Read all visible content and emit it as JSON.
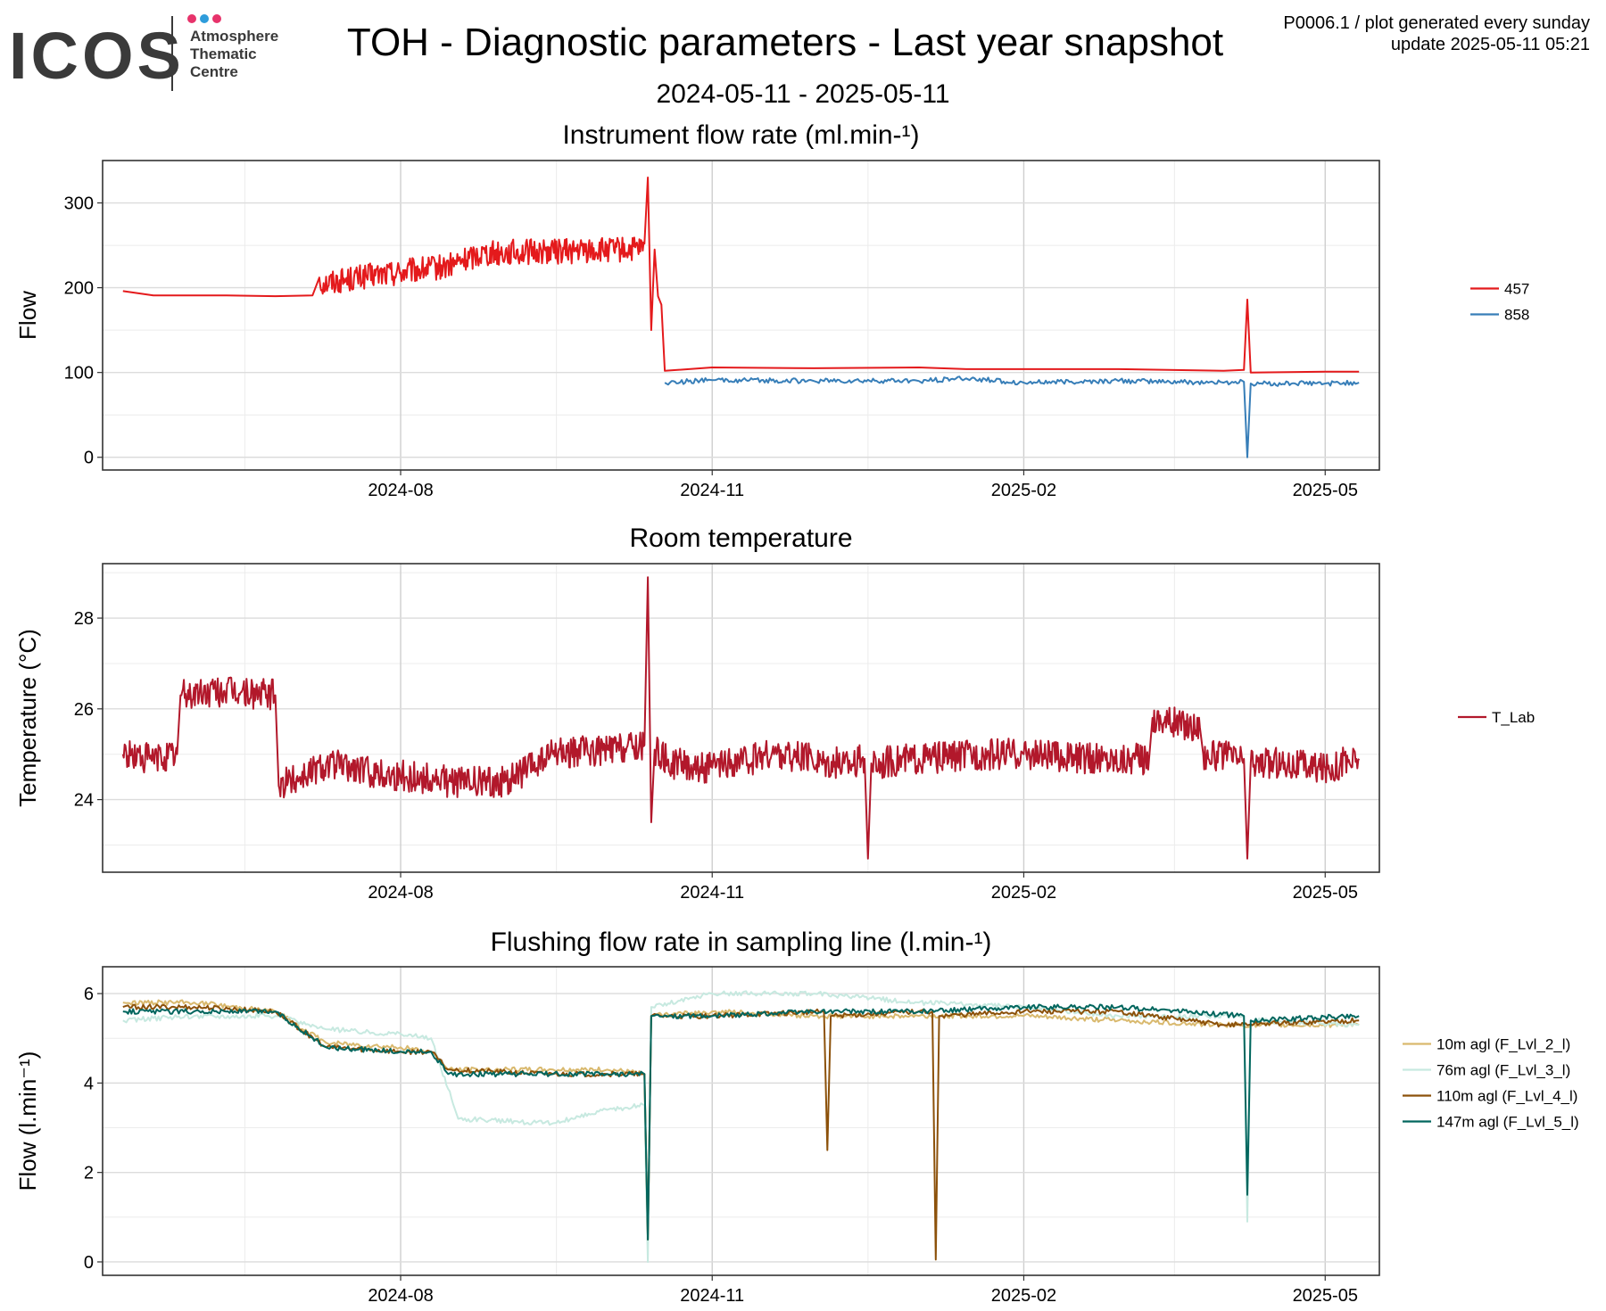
{
  "header": {
    "logo_text": "ICOS",
    "logo_sub": [
      "Atmosphere",
      "Thematic",
      "Centre"
    ],
    "title": "TOH - Diagnostic parameters - Last year snapshot",
    "date_range": "2024-05-11 - 2025-05-11",
    "meta_line1": "P0006.1 / plot generated every sunday",
    "meta_line2": "update  2025-05-11 05:21"
  },
  "colors": {
    "s457": "#E41A1C",
    "s858": "#377EB8",
    "t_lab": "#B2182B",
    "lvl2": "#D9B96E",
    "lvl3": "#C7E9E0",
    "lvl4": "#8C510A",
    "lvl5": "#01665E",
    "logo_dots": [
      "#E7336B",
      "#2E9CDB",
      "#E7336B"
    ]
  },
  "chart_data": [
    {
      "type": "line",
      "title": "Instrument flow rate (ml.min-¹)",
      "xlabel": "",
      "ylabel": "Flow",
      "xlim": [
        "2024-05-11",
        "2025-05-11"
      ],
      "ylim": [
        -15,
        350
      ],
      "x_ticks": [
        "2024-08",
        "2024-11",
        "2025-02",
        "2025-05"
      ],
      "y_ticks": [
        0,
        100,
        200,
        300
      ],
      "grid": true,
      "legend": "right",
      "series": [
        {
          "name": "457",
          "color_key": "s457",
          "x": [
            "2024-05-11",
            "2024-05-20",
            "2024-06-10",
            "2024-06-25",
            "2024-07-06",
            "2024-07-08",
            "2024-07-25",
            "2024-08-15",
            "2024-08-25",
            "2024-09-15",
            "2024-10-01",
            "2024-10-12",
            "2024-10-13",
            "2024-10-14",
            "2024-10-15",
            "2024-10-16",
            "2024-10-17",
            "2024-10-18",
            "2024-11-01",
            "2024-12-01",
            "2025-01-01",
            "2025-01-15",
            "2025-02-01",
            "2025-03-01",
            "2025-04-01",
            "2025-04-07",
            "2025-04-08",
            "2025-04-09",
            "2025-05-01",
            "2025-05-11"
          ],
          "y": [
            196,
            191,
            191,
            190,
            191,
            212,
            222,
            232,
            248,
            250,
            251,
            252,
            330,
            150,
            245,
            190,
            180,
            102,
            106,
            105,
            106,
            104,
            104,
            104,
            102,
            103,
            186,
            100,
            101,
            101
          ],
          "band": {
            "x_start": "2024-07-08",
            "x_end": "2024-10-13",
            "low_offset": -22,
            "high_offset": 8
          }
        },
        {
          "name": "858",
          "color_key": "s858",
          "x": [
            "2024-10-18",
            "2024-11-01",
            "2024-12-01",
            "2025-01-01",
            "2025-01-15",
            "2025-02-01",
            "2025-03-01",
            "2025-04-01",
            "2025-04-07",
            "2025-04-08",
            "2025-04-09",
            "2025-05-01",
            "2025-05-11"
          ],
          "y": [
            88,
            91,
            90,
            90,
            93,
            88,
            90,
            88,
            89,
            0,
            87,
            87,
            88
          ]
        }
      ]
    },
    {
      "type": "line",
      "title": "Room temperature",
      "xlabel": "",
      "ylabel": "Temperature (°C)",
      "xlim": [
        "2024-05-11",
        "2025-05-11"
      ],
      "ylim": [
        22.4,
        29.2
      ],
      "x_ticks": [
        "2024-08",
        "2024-11",
        "2025-02",
        "2025-05"
      ],
      "y_ticks": [
        24,
        26,
        28
      ],
      "grid": true,
      "legend": "right",
      "series": [
        {
          "name": "T_Lab",
          "color_key": "t_lab",
          "x": [
            "2024-05-11",
            "2024-05-20",
            "2024-05-27",
            "2024-05-28",
            "2024-06-10",
            "2024-06-25",
            "2024-06-26",
            "2024-07-10",
            "2024-07-25",
            "2024-08-15",
            "2024-09-01",
            "2024-09-15",
            "2024-10-01",
            "2024-10-12",
            "2024-10-13",
            "2024-10-14",
            "2024-10-15",
            "2024-10-20",
            "2024-11-01",
            "2024-11-20",
            "2024-12-10",
            "2024-12-16",
            "2024-12-17",
            "2024-12-18",
            "2025-01-01",
            "2025-01-20",
            "2025-02-01",
            "2025-02-20",
            "2025-03-10",
            "2025-03-11",
            "2025-03-25",
            "2025-03-26",
            "2025-04-07",
            "2025-04-08",
            "2025-04-09",
            "2025-04-20",
            "2025-05-01",
            "2025-05-11"
          ],
          "y": [
            25.0,
            24.9,
            25.0,
            26.3,
            26.4,
            26.3,
            24.3,
            24.8,
            24.6,
            24.4,
            24.4,
            25.0,
            25.1,
            25.2,
            28.9,
            23.5,
            25.1,
            24.8,
            24.7,
            25.0,
            24.8,
            24.9,
            22.7,
            24.8,
            24.9,
            25.0,
            25.0,
            24.9,
            24.9,
            25.8,
            25.6,
            25.0,
            24.9,
            22.7,
            24.8,
            24.8,
            24.7,
            24.9
          ],
          "band": {
            "x_start": "2024-05-11",
            "x_end": "2025-05-11",
            "low_offset": -0.35,
            "high_offset": 0.35
          }
        }
      ]
    },
    {
      "type": "line",
      "title": "Flushing flow rate in sampling line (l.min-¹)",
      "xlabel": "",
      "ylabel": "Flow (l.min⁻¹)",
      "xlim": [
        "2024-05-11",
        "2025-05-11"
      ],
      "ylim": [
        -0.3,
        6.6
      ],
      "x_ticks": [
        "2024-08",
        "2024-11",
        "2025-02",
        "2025-05"
      ],
      "y_ticks": [
        0,
        2,
        4,
        6
      ],
      "grid": true,
      "legend": "right",
      "series": [
        {
          "name": "10m agl (F_Lvl_2_l)",
          "color_key": "lvl2",
          "x": [
            "2024-05-11",
            "2024-06-01",
            "2024-06-25",
            "2024-07-10",
            "2024-08-01",
            "2024-08-10",
            "2024-08-15",
            "2024-09-15",
            "2024-10-01",
            "2024-10-12",
            "2024-10-13",
            "2024-10-14",
            "2024-11-01",
            "2024-12-01",
            "2025-01-01",
            "2025-02-01",
            "2025-03-01",
            "2025-04-01",
            "2025-05-11"
          ],
          "y": [
            5.8,
            5.8,
            5.6,
            4.9,
            4.8,
            4.7,
            4.3,
            4.3,
            4.3,
            4.2,
            0.5,
            5.5,
            5.6,
            5.5,
            5.5,
            5.5,
            5.4,
            5.3,
            5.3
          ]
        },
        {
          "name": "76m agl (F_Lvl_3_l)",
          "color_key": "lvl3",
          "x": [
            "2024-05-11",
            "2024-06-01",
            "2024-06-25",
            "2024-07-10",
            "2024-08-01",
            "2024-08-10",
            "2024-08-18",
            "2024-09-15",
            "2024-10-01",
            "2024-10-12",
            "2024-10-13",
            "2024-10-14",
            "2024-11-01",
            "2024-12-01",
            "2025-01-01",
            "2025-02-01",
            "2025-03-01",
            "2025-04-07",
            "2025-04-08",
            "2025-04-09",
            "2025-05-11"
          ],
          "y": [
            5.4,
            5.5,
            5.5,
            5.2,
            5.1,
            5.0,
            3.2,
            3.1,
            3.4,
            3.5,
            0.0,
            5.7,
            6.0,
            6.0,
            5.8,
            5.7,
            5.5,
            5.5,
            0.9,
            5.4,
            5.3
          ]
        },
        {
          "name": "110m agl (F_Lvl_4_l)",
          "color_key": "lvl4",
          "x": [
            "2024-05-11",
            "2024-06-01",
            "2024-06-25",
            "2024-07-10",
            "2024-08-01",
            "2024-08-10",
            "2024-08-15",
            "2024-09-15",
            "2024-10-01",
            "2024-10-12",
            "2024-10-13",
            "2024-10-14",
            "2024-11-01",
            "2024-12-04",
            "2024-12-05",
            "2024-12-06",
            "2025-01-01",
            "2025-01-05",
            "2025-01-06",
            "2025-01-07",
            "2025-02-01",
            "2025-03-01",
            "2025-04-01",
            "2025-05-11"
          ],
          "y": [
            5.7,
            5.7,
            5.6,
            4.8,
            4.7,
            4.7,
            4.3,
            4.2,
            4.2,
            4.2,
            0.5,
            5.5,
            5.5,
            5.6,
            2.5,
            5.5,
            5.6,
            5.6,
            0.05,
            5.5,
            5.6,
            5.6,
            5.3,
            5.4
          ]
        },
        {
          "name": "147m agl (F_Lvl_5_l)",
          "color_key": "lvl5",
          "x": [
            "2024-05-11",
            "2024-06-01",
            "2024-06-25",
            "2024-07-10",
            "2024-08-01",
            "2024-08-10",
            "2024-08-15",
            "2024-09-15",
            "2024-10-01",
            "2024-10-12",
            "2024-10-13",
            "2024-10-14",
            "2024-11-01",
            "2024-12-01",
            "2025-01-01",
            "2025-02-01",
            "2025-03-01",
            "2025-04-07",
            "2025-04-08",
            "2025-04-09",
            "2025-05-11"
          ],
          "y": [
            5.6,
            5.6,
            5.6,
            4.8,
            4.7,
            4.7,
            4.2,
            4.2,
            4.2,
            4.2,
            0.5,
            5.5,
            5.5,
            5.6,
            5.6,
            5.7,
            5.7,
            5.5,
            1.5,
            5.4,
            5.5
          ]
        }
      ]
    }
  ]
}
